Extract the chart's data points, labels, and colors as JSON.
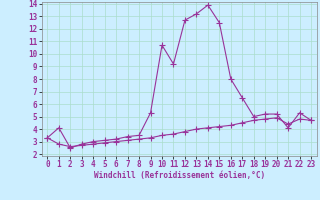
{
  "xlabel": "Windchill (Refroidissement éolien,°C)",
  "bg_color": "#cceeff",
  "line_color": "#993399",
  "grid_color": "#aaddcc",
  "x_values": [
    0,
    1,
    2,
    3,
    4,
    5,
    6,
    7,
    8,
    9,
    10,
    11,
    12,
    13,
    14,
    15,
    16,
    17,
    18,
    19,
    20,
    21,
    22,
    23
  ],
  "line1_y": [
    3.3,
    4.1,
    2.5,
    2.8,
    3.0,
    3.1,
    3.2,
    3.4,
    3.5,
    5.3,
    10.7,
    9.2,
    12.7,
    13.2,
    13.9,
    12.5,
    8.0,
    6.5,
    5.0,
    5.2,
    5.2,
    4.1,
    5.3,
    4.7
  ],
  "line2_y": [
    3.3,
    2.8,
    2.6,
    2.7,
    2.8,
    2.9,
    3.0,
    3.1,
    3.2,
    3.3,
    3.5,
    3.6,
    3.8,
    4.0,
    4.1,
    4.2,
    4.3,
    4.5,
    4.7,
    4.8,
    4.9,
    4.4,
    4.8,
    4.7
  ],
  "ylim": [
    2,
    14
  ],
  "xlim": [
    0,
    23
  ],
  "yticks": [
    2,
    3,
    4,
    5,
    6,
    7,
    8,
    9,
    10,
    11,
    12,
    13,
    14
  ],
  "xticks": [
    0,
    1,
    2,
    3,
    4,
    5,
    6,
    7,
    8,
    9,
    10,
    11,
    12,
    13,
    14,
    15,
    16,
    17,
    18,
    19,
    20,
    21,
    22,
    23
  ],
  "marker": "+",
  "markersize": 4,
  "linewidth": 0.8,
  "tick_fontsize": 5.5,
  "xlabel_fontsize": 5.5,
  "spine_color": "#888888"
}
